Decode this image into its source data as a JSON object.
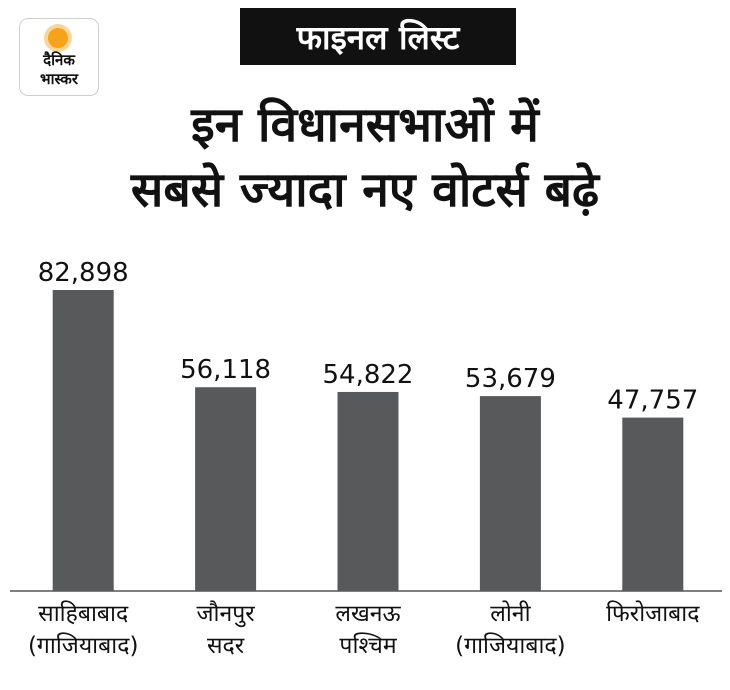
{
  "logo": {
    "line1": "दैनिक",
    "line2": "भास्कर"
  },
  "tag": "फाइनल लिस्ट",
  "title": {
    "line1": "इन विधानसभाओं में",
    "line2": "सबसे ज्यादा नए वोटर्स बढ़े"
  },
  "colors": {
    "bar": "#58595b",
    "axis": "#555555",
    "tag_bg": "#111111",
    "sun": "#f7a21b"
  },
  "chart_data": {
    "type": "bar",
    "title": "इन विधानसभाओं में सबसे ज्यादा नए वोटर्स बढ़े",
    "categories": [
      {
        "line1": "साहिबाबाद",
        "line2": "(गाजियाबाद)"
      },
      {
        "line1": "जौनपुर",
        "line2": "सदर"
      },
      {
        "line1": "लखनऊ",
        "line2": "पश्चिम"
      },
      {
        "line1": "लोनी",
        "line2": "(गाजियाबाद)"
      },
      {
        "line1": "फिरोजाबाद",
        "line2": ""
      }
    ],
    "values": [
      82898,
      56118,
      54822,
      53679,
      47757
    ],
    "labels": [
      "82,898",
      "56,118",
      "54,822",
      "53,679",
      "47,757"
    ],
    "xlabel": "",
    "ylabel": "",
    "ylim": [
      0,
      82898
    ],
    "grid": false
  }
}
